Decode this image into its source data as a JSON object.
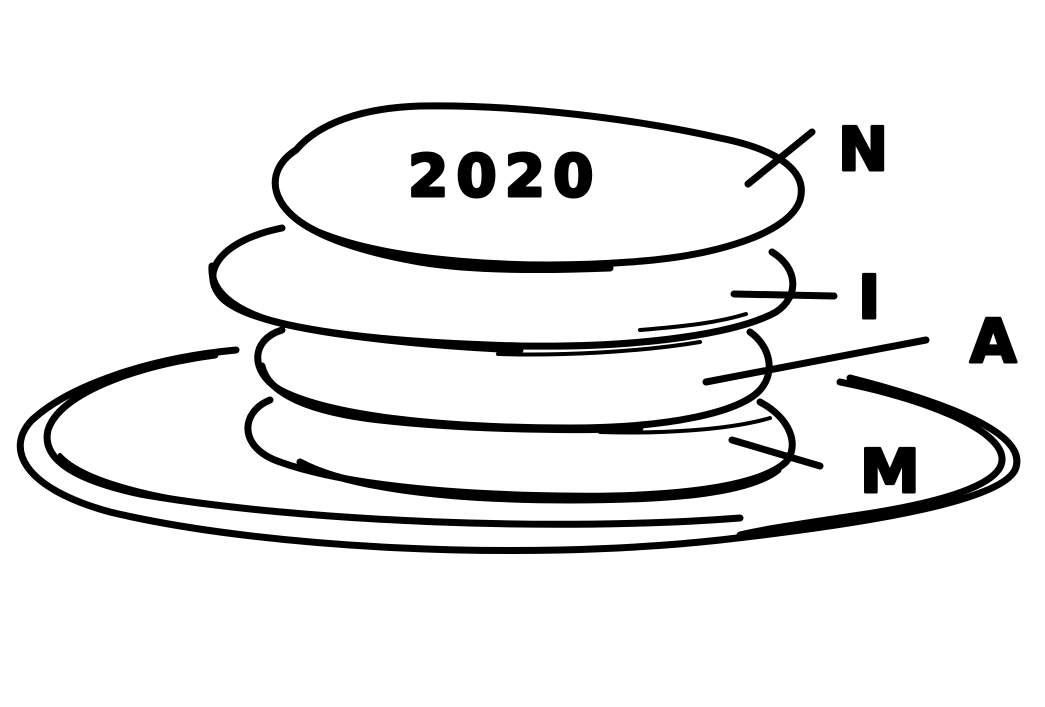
{
  "top_disc_text": "2020",
  "labels": {
    "n": "N",
    "i": "I",
    "a": "A",
    "m": "M"
  },
  "colors": {
    "ink": "#000000",
    "paper": "#ffffff"
  }
}
